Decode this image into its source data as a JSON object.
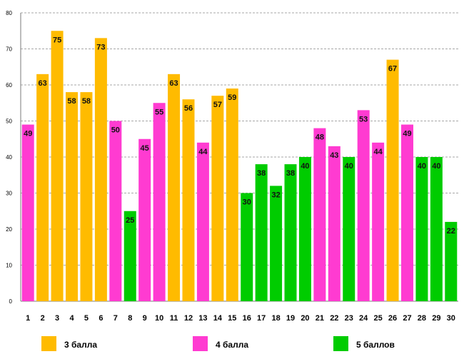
{
  "chart_data": {
    "type": "bar",
    "title": "",
    "xlabel": "",
    "ylabel": "",
    "ylim": [
      0,
      80
    ],
    "yticks": [
      0,
      10,
      20,
      30,
      40,
      50,
      60,
      70,
      80
    ],
    "grid": "horizontal-dashed",
    "categories": [
      "1",
      "2",
      "3",
      "4",
      "5",
      "6",
      "7",
      "8",
      "9",
      "10",
      "11",
      "12",
      "13",
      "14",
      "15",
      "16",
      "17",
      "18",
      "19",
      "20",
      "21",
      "22",
      "23",
      "24",
      "25",
      "26",
      "27",
      "28",
      "29",
      "30"
    ],
    "values": [
      49,
      63,
      75,
      58,
      58,
      73,
      50,
      25,
      45,
      55,
      63,
      56,
      44,
      57,
      59,
      30,
      38,
      32,
      38,
      40,
      48,
      43,
      40,
      53,
      44,
      67,
      49,
      40,
      40,
      22
    ],
    "groups": [
      2,
      1,
      1,
      1,
      1,
      1,
      2,
      3,
      2,
      2,
      1,
      1,
      2,
      1,
      1,
      3,
      3,
      3,
      3,
      3,
      2,
      2,
      3,
      2,
      2,
      1,
      2,
      3,
      3,
      3
    ],
    "legend_position": "bottom",
    "legend": [
      {
        "group": 1,
        "label": "3 балла",
        "color": "#FFBB00"
      },
      {
        "group": 2,
        "label": "4 балла",
        "color": "#FF3BD1"
      },
      {
        "group": 3,
        "label": "5 баллов",
        "color": "#00CC00"
      }
    ]
  }
}
